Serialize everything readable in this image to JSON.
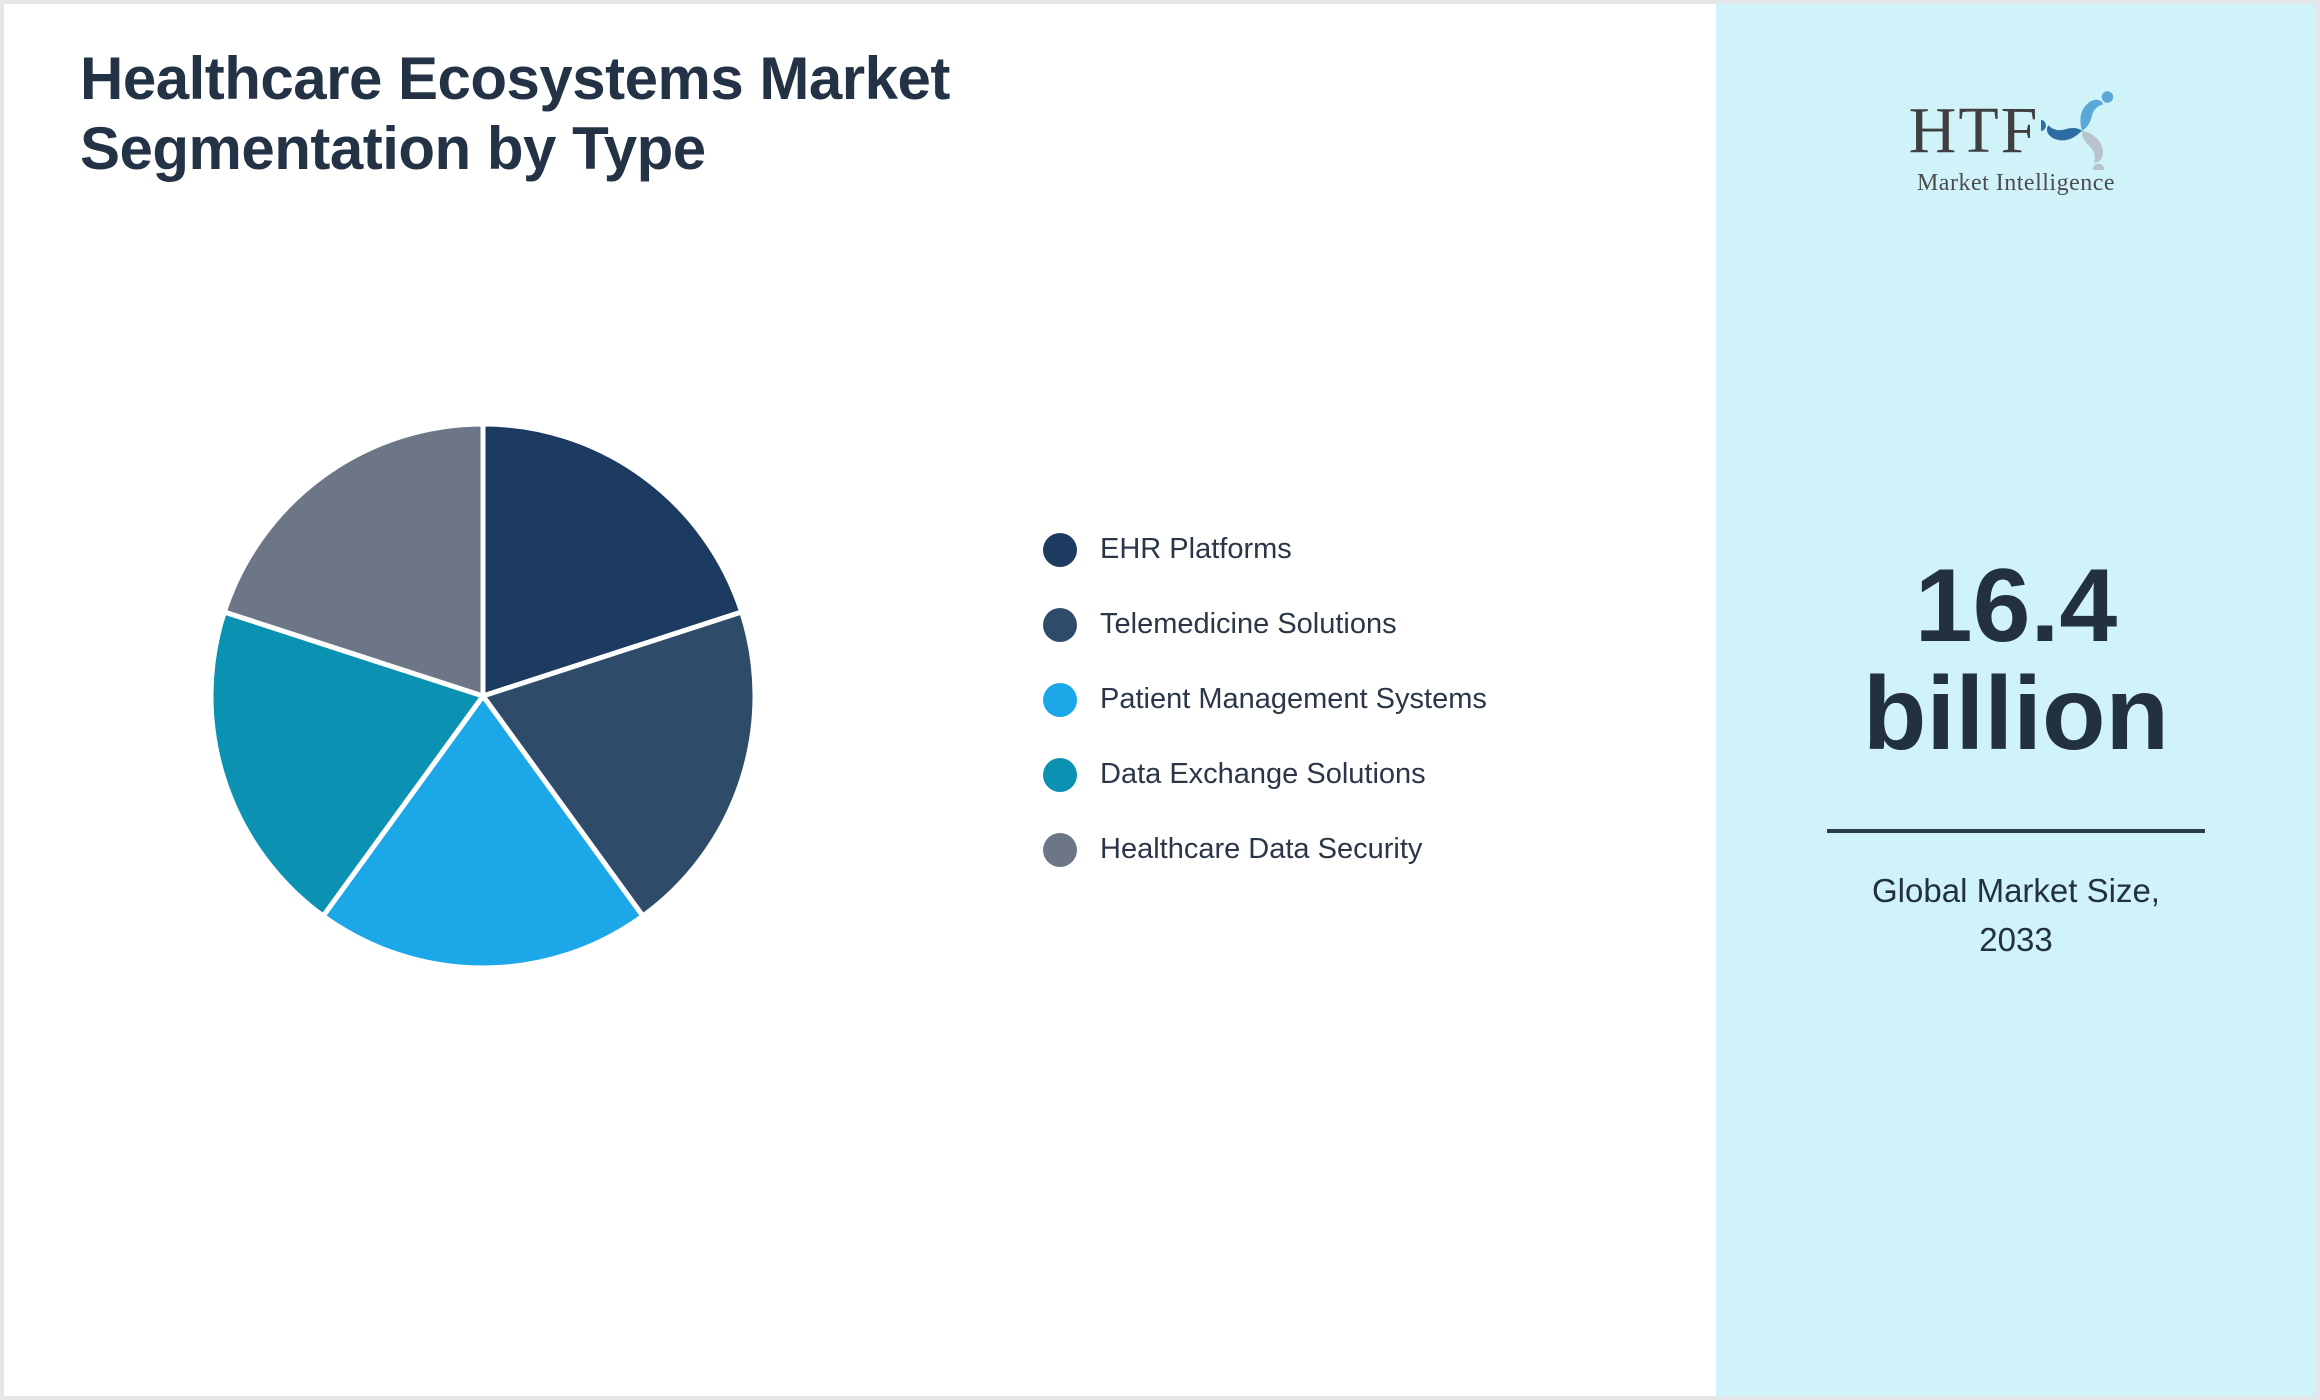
{
  "header": {
    "title_line1": "Healthcare Ecosystems Market",
    "title_line2": "Segmentation by Type"
  },
  "chart_data": {
    "type": "pie",
    "title": "Healthcare Ecosystems Market Segmentation by Type",
    "categories": [
      "EHR Platforms",
      "Telemedicine Solutions",
      "Patient Management Systems",
      "Data Exchange Solutions",
      "Healthcare Data Security"
    ],
    "values": [
      20,
      20,
      20,
      20,
      20
    ],
    "colors": [
      "#1d3a61",
      "#2e4c69",
      "#1ca7e8",
      "#0b92b2",
      "#6c7687"
    ],
    "legend_position": "right",
    "start_angle": "top",
    "direction": "clockwise",
    "slice_separator_color": "#ffffff"
  },
  "sidebar": {
    "background_color": "#d0f3fa",
    "logo": {
      "text": "HTF",
      "subtext": "Market Intelligence",
      "icon_colors": [
        "#5ba7d6",
        "#b9c3cb",
        "#2e6da4"
      ]
    },
    "market_size_value": "16.4",
    "market_size_unit": "billion",
    "caption_line1": "Global Market Size,",
    "caption_line2": "2033"
  },
  "theme": {
    "page_background": "#ffffff",
    "border_color": "#e4e6ea",
    "title_color": "#243246",
    "legend_text_color": "#2b3648",
    "divider_color": "#2c3a4d"
  }
}
